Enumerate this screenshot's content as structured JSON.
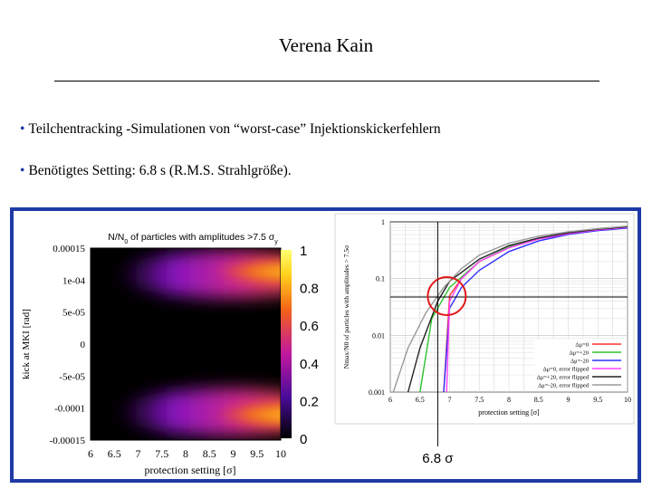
{
  "header": {
    "title": "Verena Kain"
  },
  "bullets": [
    "Teilchentracking -Simulationen von “worst-case” Injektionskickerfehlern",
    "Benötigtes Setting: 6.8 s (R.M.S. Strahlgröße)."
  ],
  "colors": {
    "frame": "#1f3aa6",
    "bullet": "#1a3da8"
  },
  "chart_data": [
    {
      "type": "heatmap",
      "title": "N/N0 of particles with amplitudes >7.5 σy",
      "xlabel": "protection setting [σ]",
      "ylabel": "kick at MKI [rad]",
      "xlim": [
        6,
        10
      ],
      "ylim": [
        -0.00015,
        0.00015
      ],
      "x_ticks": [
        "6",
        "6.5",
        "7",
        "7.5",
        "8",
        "8.5",
        "9",
        "9.5",
        "10"
      ],
      "y_ticks": [
        "0.00015",
        "1e-04",
        "5e-05",
        "0",
        "-5e-05",
        "-0.0001",
        "-0.00015"
      ],
      "colorbar": {
        "range": [
          0,
          1
        ],
        "ticks": [
          "1",
          "0.8",
          "0.6",
          "0.4",
          "0.2",
          "0"
        ],
        "colors": [
          "#000000",
          "#4a0c9a",
          "#c0189e",
          "#f4611a",
          "#ffd21c",
          "#ffff70"
        ]
      }
    },
    {
      "type": "line",
      "xlabel": "protection setting [σ]",
      "ylabel": "Nmax/N0 of particles with amplitudes > 7.5σ",
      "xlim": [
        6,
        10
      ],
      "ylim": [
        0.001,
        1
      ],
      "y_scale": "log",
      "x_ticks": [
        "6",
        "6.5",
        "7",
        "7.5",
        "8",
        "8.5",
        "9",
        "9.5",
        "10"
      ],
      "y_ticks": [
        "1",
        "0.1",
        "0.01",
        "0.001"
      ],
      "legend_position": "bottom-right",
      "grid": true,
      "annotation": "6.8 σ",
      "annotation_x": 6.8,
      "series": [
        {
          "name": "Δμ=0",
          "color": "#ff3030",
          "x": [
            6.9,
            7.0,
            7.2,
            7.5,
            8.0,
            8.5,
            9.0,
            9.5,
            10.0
          ],
          "y": [
            0.001,
            0.05,
            0.1,
            0.2,
            0.35,
            0.5,
            0.62,
            0.72,
            0.8
          ]
        },
        {
          "name": "Δμ=+20",
          "color": "#2ec22e",
          "x": [
            6.5,
            6.7,
            7.0,
            7.5,
            8.0,
            8.5,
            9.0,
            9.5,
            10.0
          ],
          "y": [
            0.001,
            0.02,
            0.07,
            0.2,
            0.36,
            0.5,
            0.62,
            0.72,
            0.8
          ]
        },
        {
          "name": "Δμ=-20",
          "color": "#3030ff",
          "x": [
            6.9,
            7.0,
            7.2,
            7.5,
            8.0,
            8.5,
            9.0,
            9.5,
            10.0
          ],
          "y": [
            0.001,
            0.03,
            0.07,
            0.14,
            0.3,
            0.46,
            0.6,
            0.7,
            0.78
          ]
        },
        {
          "name": "Δμ=0, error flipped",
          "color": "#ff40ff",
          "x": [
            6.95,
            7.0,
            7.2,
            7.5,
            8.0,
            8.5,
            9.0,
            9.5,
            10.0
          ],
          "y": [
            0.001,
            0.04,
            0.1,
            0.2,
            0.35,
            0.5,
            0.62,
            0.72,
            0.8
          ]
        },
        {
          "name": "Δμ=+20, error flipped",
          "color": "#222222",
          "x": [
            6.3,
            6.5,
            6.8,
            7.0,
            7.5,
            8.0,
            8.5,
            9.0,
            9.5,
            10.0
          ],
          "y": [
            0.001,
            0.006,
            0.04,
            0.09,
            0.22,
            0.38,
            0.52,
            0.64,
            0.74,
            0.82
          ]
        },
        {
          "name": "Δμ=-20, error flipped",
          "color": "#9a9a9a",
          "x": [
            6.05,
            6.3,
            6.6,
            6.9,
            7.2,
            7.5,
            8.0,
            8.5,
            9.0,
            9.5,
            10.0
          ],
          "y": [
            0.001,
            0.006,
            0.025,
            0.07,
            0.15,
            0.26,
            0.42,
            0.56,
            0.67,
            0.76,
            0.84
          ]
        }
      ]
    }
  ]
}
